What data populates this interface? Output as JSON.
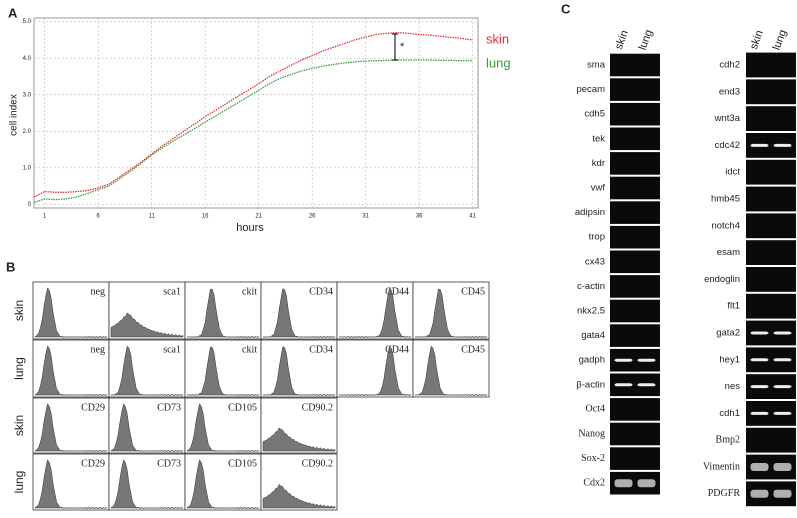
{
  "chart_data": {
    "type": "line",
    "panel_label": "A",
    "xlabel": "hours",
    "ylabel": "cell index",
    "annotation": "*",
    "x": [
      0,
      1,
      2,
      3,
      4,
      5,
      6,
      7,
      8,
      9,
      10,
      11,
      12,
      13,
      14,
      15,
      16,
      17,
      18,
      19,
      20,
      21,
      22,
      23,
      24,
      25,
      26,
      27,
      28,
      29,
      30,
      31,
      32,
      33,
      34,
      35,
      36,
      37,
      38,
      39,
      40,
      41
    ],
    "series": [
      {
        "name": "skin",
        "color": "#e0303c",
        "values": [
          0.2,
          0.35,
          0.33,
          0.33,
          0.35,
          0.38,
          0.45,
          0.55,
          0.75,
          0.95,
          1.15,
          1.38,
          1.6,
          1.8,
          2.0,
          2.2,
          2.4,
          2.58,
          2.76,
          2.95,
          3.12,
          3.3,
          3.5,
          3.65,
          3.8,
          3.95,
          4.07,
          4.2,
          4.3,
          4.4,
          4.5,
          4.58,
          4.65,
          4.68,
          4.7,
          4.68,
          4.65,
          4.63,
          4.6,
          4.57,
          4.54,
          4.5
        ]
      },
      {
        "name": "lung",
        "color": "#3a9a3a",
        "values": [
          0.05,
          0.15,
          0.13,
          0.15,
          0.2,
          0.3,
          0.4,
          0.5,
          0.7,
          0.9,
          1.12,
          1.35,
          1.55,
          1.73,
          1.9,
          2.07,
          2.25,
          2.42,
          2.6,
          2.77,
          2.95,
          3.12,
          3.3,
          3.45,
          3.55,
          3.65,
          3.72,
          3.78,
          3.83,
          3.87,
          3.9,
          3.92,
          3.93,
          3.94,
          3.95,
          3.95,
          3.95,
          3.95,
          3.94,
          3.94,
          3.93,
          3.93
        ]
      }
    ],
    "xlim": [
      0,
      41.5
    ],
    "xticks": [
      1,
      6,
      11,
      16,
      21,
      26,
      31,
      36,
      41
    ],
    "ylim": [
      -0.1,
      5.1
    ],
    "yticks": [
      0,
      {
        "value": 1,
        "label": "1.0"
      },
      {
        "value": 2,
        "label": "2.0"
      },
      {
        "value": 3,
        "label": "3.0"
      },
      {
        "value": 4,
        "label": "4.0"
      },
      {
        "value": 5,
        "label": "5.0"
      }
    ],
    "grid": true
  },
  "histograms": {
    "panel_label": "B",
    "rows": [
      {
        "label": "skin",
        "panels": [
          "neg",
          "sca1",
          "ckit",
          "CD34",
          "CD44",
          "CD45"
        ]
      },
      {
        "label": "lung",
        "panels": [
          "neg",
          "sca1",
          "ckit",
          "CD34",
          "CD44",
          "CD45"
        ]
      },
      {
        "label": "skin",
        "panels": [
          "CD29",
          "CD73",
          "CD105",
          "CD90.2"
        ]
      },
      {
        "label": "lung",
        "panels": [
          "CD29",
          "CD73",
          "CD105",
          "CD90.2"
        ]
      }
    ]
  },
  "gel": {
    "panel_label": "C",
    "columns": [
      {
        "headers": [
          "skin",
          "lung"
        ],
        "genes": [
          "sma",
          "pecam",
          "cdh5",
          "tek",
          "kdr",
          "vwf",
          "adipsin",
          "trop",
          "cx43",
          "c-actin",
          "nkx2.5",
          "gata4",
          "gadph",
          "β-actin",
          "Oct4",
          "Nanog",
          "Sox-2",
          "Cdx2"
        ]
      },
      {
        "headers": [
          "skin",
          "lung"
        ],
        "genes": [
          "cdh2",
          "end3",
          "wnt3a",
          "cdc42",
          "idct",
          "hmb45",
          "notch4",
          "esam",
          "endoglin",
          "flt1",
          "gata2",
          "hey1",
          "nes",
          "cdh1",
          "Bmp2",
          "Vimentin",
          "PDGFR"
        ]
      }
    ]
  }
}
